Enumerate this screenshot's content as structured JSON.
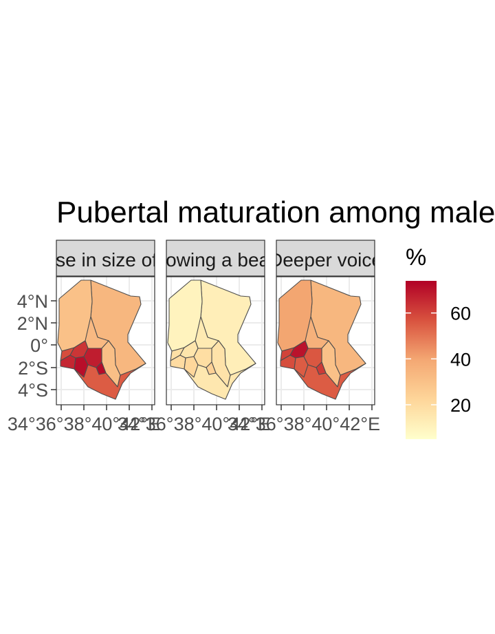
{
  "title": "Pubertal maturation among males",
  "panels": [
    {
      "label": "Increase in size of penis",
      "values": {
        "north_east": 34,
        "north_west": 30,
        "north_central": 33,
        "eastern": 31,
        "west_1": 58,
        "west_2": 63,
        "west_3": 66,
        "west_4": 71,
        "central_lake": 68,
        "nairobi": 72,
        "coast": 55
      }
    },
    {
      "label": "Growing a beard",
      "values": {
        "north_east": 12,
        "north_west": 10,
        "north_central": 14,
        "eastern": 17,
        "west_1": 18,
        "west_2": 16,
        "west_3": 20,
        "west_4": 22,
        "central_lake": 19,
        "nairobi": 24,
        "coast": 15
      }
    },
    {
      "label": "Deeper voice",
      "values": {
        "north_east": 34,
        "north_west": 40,
        "north_central": 36,
        "eastern": 30,
        "west_1": 60,
        "west_2": 70,
        "west_3": 58,
        "west_4": 55,
        "central_lake": 56,
        "nairobi": 62,
        "coast": 55
      }
    }
  ],
  "chart_data": {
    "type": "heatmap",
    "map": "Kenya regions, faceted choropleth",
    "facets": [
      "Increase in size of penis",
      "Growing a beard",
      "Deeper voice"
    ],
    "y_ticks": [
      "4°N",
      "2°N",
      "0°",
      "2°S",
      "4°S"
    ],
    "x_ticks": [
      "34°E",
      "36°E",
      "38°E",
      "40°E",
      "42°E"
    ],
    "x_tick_text": "34°36°38°40°42°E",
    "legend_title": "%",
    "legend_breaks": [
      20,
      40,
      60
    ],
    "value_range": [
      5,
      74
    ],
    "palette": [
      "#ffffcc",
      "#fed976",
      "#fd8d3c",
      "#e31a1c",
      "#b10026"
    ],
    "grid": true
  }
}
